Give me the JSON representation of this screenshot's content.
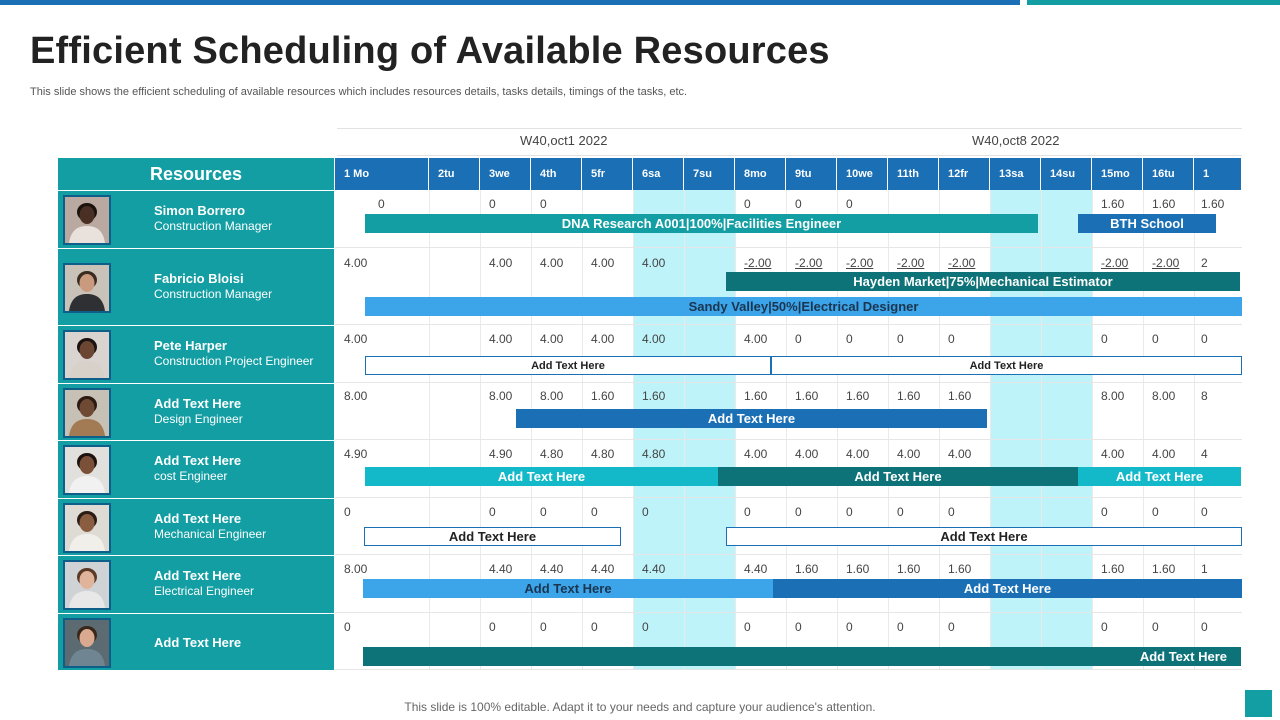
{
  "title": "Efficient Scheduling of Available Resources",
  "subtitle": "This slide shows the efficient scheduling of available resources which includes resources details, tasks details, timings of the tasks, etc.",
  "weeks": [
    "W40,oct1 2022",
    "W40,oct8 2022"
  ],
  "resources_header": "Resources",
  "days": [
    "1 Mo",
    "2tu",
    "3we",
    "4th",
    "5fr",
    "6sa",
    "7su",
    "8mo",
    "9tu",
    "10we",
    "11th",
    "12fr",
    "13sa",
    "14su",
    "15mo",
    "16tu",
    "1"
  ],
  "weekend_days": [
    "6sa",
    "7su",
    "13sa",
    "14su"
  ],
  "resources": [
    {
      "name": "Simon Borrero",
      "role": "Construction Manager",
      "values": [
        "0",
        "",
        "0",
        "0",
        "",
        "",
        "",
        "0",
        "0",
        "0",
        "",
        "",
        "",
        "",
        "1.60",
        "1.60",
        "1.60"
      ],
      "underlined": [],
      "tasks": [
        {
          "label": "DNA Research A001|100%|Facilities Engineer",
          "color": "#129ea3",
          "style": "solid"
        },
        {
          "label": "BTH School",
          "color": "#1a6fb5",
          "style": "solid"
        }
      ]
    },
    {
      "name": "Fabricio Bloisi",
      "role": "Construction Manager",
      "values": [
        "4.00",
        "",
        "4.00",
        "4.00",
        "4.00",
        "4.00",
        "",
        "-2.00",
        "-2.00",
        "-2.00",
        "-2.00",
        "-2.00",
        "",
        "",
        "-2.00",
        "-2.00",
        "2"
      ],
      "underlined": [
        "-2.00"
      ],
      "tasks": [
        {
          "label": "Hayden Market|75%|Mechanical Estimator",
          "color": "#0e7378",
          "style": "solid"
        },
        {
          "label": "Sandy Valley|50%|Electrical Designer",
          "color": "#3ca4e8",
          "style": "solid",
          "text_color": "#1b3550"
        }
      ]
    },
    {
      "name": "Pete Harper",
      "role": "Construction Project Engineer",
      "values": [
        "4.00",
        "",
        "4.00",
        "4.00",
        "4.00",
        "4.00",
        "",
        "4.00",
        "0",
        "0",
        "0",
        "0",
        "",
        "",
        "0",
        "0",
        "0"
      ],
      "underlined": [],
      "tasks": [
        {
          "label": "Add Text Here",
          "style": "outline"
        },
        {
          "label": "Add Text Here",
          "style": "outline"
        }
      ]
    },
    {
      "name": "Add Text Here",
      "role": "Design Engineer",
      "values": [
        "8.00",
        "",
        "8.00",
        "8.00",
        "1.60",
        "1.60",
        "",
        "1.60",
        "1.60",
        "1.60",
        "1.60",
        "1.60",
        "",
        "",
        "8.00",
        "8.00",
        "8"
      ],
      "underlined": [],
      "tasks": [
        {
          "label": "Add Text Here",
          "color": "#1a6fb5",
          "style": "solid"
        }
      ]
    },
    {
      "name": "Add Text Here",
      "role": "cost Engineer",
      "values": [
        "4.90",
        "",
        "4.90",
        "4.80",
        "4.80",
        "4.80",
        "",
        "4.00",
        "4.00",
        "4.00",
        "4.00",
        "4.00",
        "",
        "",
        "4.00",
        "4.00",
        "4"
      ],
      "underlined": [],
      "tasks": [
        {
          "label": "Add Text Here",
          "color": "#14b9c9",
          "style": "solid"
        },
        {
          "label": "Add Text Here",
          "color": "#0e7378",
          "style": "solid"
        },
        {
          "label": "Add Text Here",
          "color": "#14b9c9",
          "style": "solid"
        }
      ]
    },
    {
      "name": "Add Text Here",
      "role": "Mechanical Engineer",
      "values": [
        "0",
        "",
        "0",
        "0",
        "0",
        "0",
        "",
        "0",
        "0",
        "0",
        "0",
        "0",
        "",
        "",
        "0",
        "0",
        "0"
      ],
      "underlined": [],
      "tasks": [
        {
          "label": "Add Text Here",
          "style": "outline"
        },
        {
          "label": "Add Text Here",
          "style": "outline"
        }
      ]
    },
    {
      "name": "Add Text Here",
      "role": "Electrical Engineer",
      "values": [
        "8.00",
        "",
        "4.40",
        "4.40",
        "4.40",
        "4.40",
        "",
        "4.40",
        "1.60",
        "1.60",
        "1.60",
        "1.60",
        "",
        "",
        "1.60",
        "1.60",
        "1"
      ],
      "underlined": [],
      "tasks": [
        {
          "label": "Add Text Here",
          "color": "#3ca4e8",
          "style": "solid",
          "text_color": "#1b3550"
        },
        {
          "label": "Add Text Here",
          "color": "#1a6fb5",
          "style": "solid"
        }
      ]
    },
    {
      "name": "Add Text Here",
      "role": "",
      "values": [
        "0",
        "",
        "0",
        "0",
        "0",
        "0",
        "",
        "0",
        "0",
        "0",
        "0",
        "0",
        "",
        "",
        "0",
        "0",
        "0"
      ],
      "underlined": [],
      "tasks": [
        {
          "label": "Add Text Here",
          "color": "#0e7378",
          "style": "solid"
        }
      ]
    }
  ],
  "footer": "This slide is 100% editable. Adapt it to your needs and capture your audience's attention.",
  "colors": {
    "teal": "#129ea3",
    "blue": "#1a6fb5",
    "weekend": "#bff3fa",
    "dark_teal": "#0e7378"
  }
}
